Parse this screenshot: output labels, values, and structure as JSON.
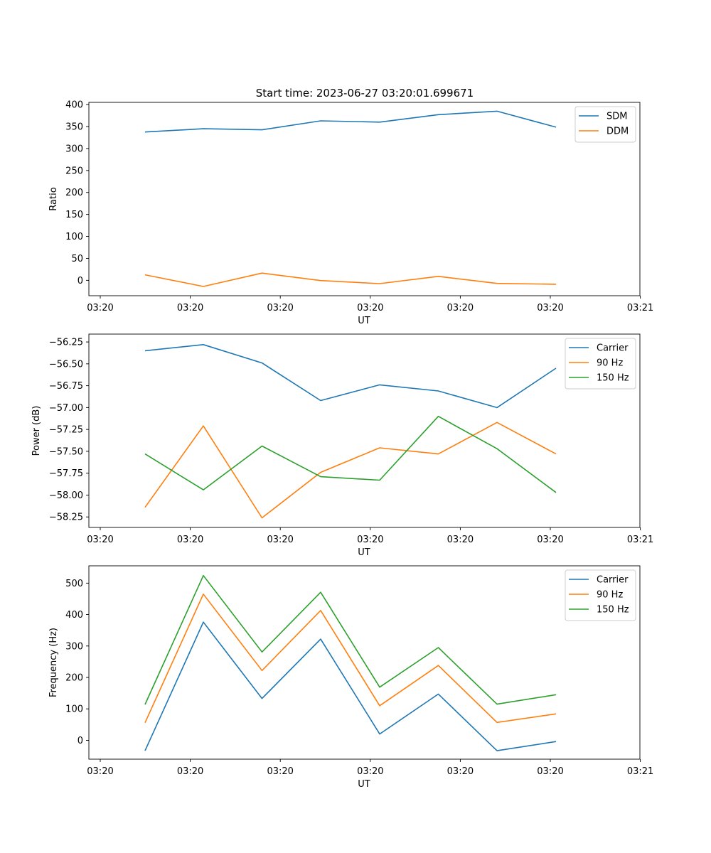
{
  "figure_title": "Start time: 2023-06-27 03:20:01.699671",
  "colors": {
    "blue": "#1f77b4",
    "orange": "#ff7f0e",
    "green": "#2ca02c"
  },
  "chart_data": [
    {
      "type": "line",
      "xlabel": "UT",
      "ylabel": "Ratio",
      "x_tick_labels": [
        "03:20",
        "03:20",
        "03:20",
        "03:20",
        "03:20",
        "03:20",
        "03:21"
      ],
      "ylim": [
        -35,
        405
      ],
      "y_ticks": [
        0,
        50,
        100,
        150,
        200,
        250,
        300,
        350,
        400
      ],
      "y_tick_labels": [
        "0",
        "50",
        "100",
        "150",
        "200",
        "250",
        "300",
        "350",
        "400"
      ],
      "legend": "top-right",
      "series": [
        {
          "name": "SDM",
          "color": "#1f77b4",
          "values": [
            337.5,
            345,
            342.5,
            363,
            360,
            377,
            385,
            348.5
          ]
        },
        {
          "name": "DDM",
          "color": "#ff7f0e",
          "values": [
            12.5,
            -14,
            16.5,
            -0.5,
            -7.5,
            9,
            -7,
            -9
          ]
        }
      ]
    },
    {
      "type": "line",
      "xlabel": "UT",
      "ylabel": "Power (dB)",
      "x_tick_labels": [
        "03:20",
        "03:20",
        "03:20",
        "03:20",
        "03:20",
        "03:20",
        "03:21"
      ],
      "ylim": [
        -58.37,
        -56.16
      ],
      "y_ticks": [
        -58.25,
        -58.0,
        -57.75,
        -57.5,
        -57.25,
        -57.0,
        -56.75,
        -56.5,
        -56.25
      ],
      "y_tick_labels": [
        "−58.25",
        "−58.00",
        "−57.75",
        "−57.50",
        "−57.25",
        "−57.00",
        "−56.75",
        "−56.50",
        "−56.25"
      ],
      "legend": "top-right",
      "series": [
        {
          "name": "Carrier",
          "color": "#1f77b4",
          "values": [
            -56.35,
            -56.28,
            -56.49,
            -56.92,
            -56.74,
            -56.81,
            -57.0,
            -56.55
          ]
        },
        {
          "name": "90 Hz",
          "color": "#ff7f0e",
          "values": [
            -58.14,
            -57.21,
            -58.26,
            -57.74,
            -57.46,
            -57.53,
            -57.17,
            -57.53
          ]
        },
        {
          "name": "150 Hz",
          "color": "#2ca02c",
          "values": [
            -57.53,
            -57.94,
            -57.44,
            -57.79,
            -57.83,
            -57.1,
            -57.47,
            -57.97
          ]
        }
      ]
    },
    {
      "type": "line",
      "xlabel": "UT",
      "ylabel": "Frequency (Hz)",
      "x_tick_labels": [
        "03:20",
        "03:20",
        "03:20",
        "03:20",
        "03:20",
        "03:20",
        "03:21"
      ],
      "ylim": [
        -60,
        555
      ],
      "y_ticks": [
        0,
        100,
        200,
        300,
        400,
        500
      ],
      "y_tick_labels": [
        "0",
        "100",
        "200",
        "300",
        "400",
        "500"
      ],
      "legend": "top-right",
      "series": [
        {
          "name": "Carrier",
          "color": "#1f77b4",
          "values": [
            -33,
            376,
            133,
            322,
            20,
            147,
            -33,
            -4
          ]
        },
        {
          "name": "90 Hz",
          "color": "#ff7f0e",
          "values": [
            56,
            465,
            222,
            413,
            110,
            238,
            57,
            84
          ]
        },
        {
          "name": "150 Hz",
          "color": "#2ca02c",
          "values": [
            114,
            524,
            281,
            471,
            169,
            295,
            115,
            145
          ]
        }
      ]
    }
  ]
}
